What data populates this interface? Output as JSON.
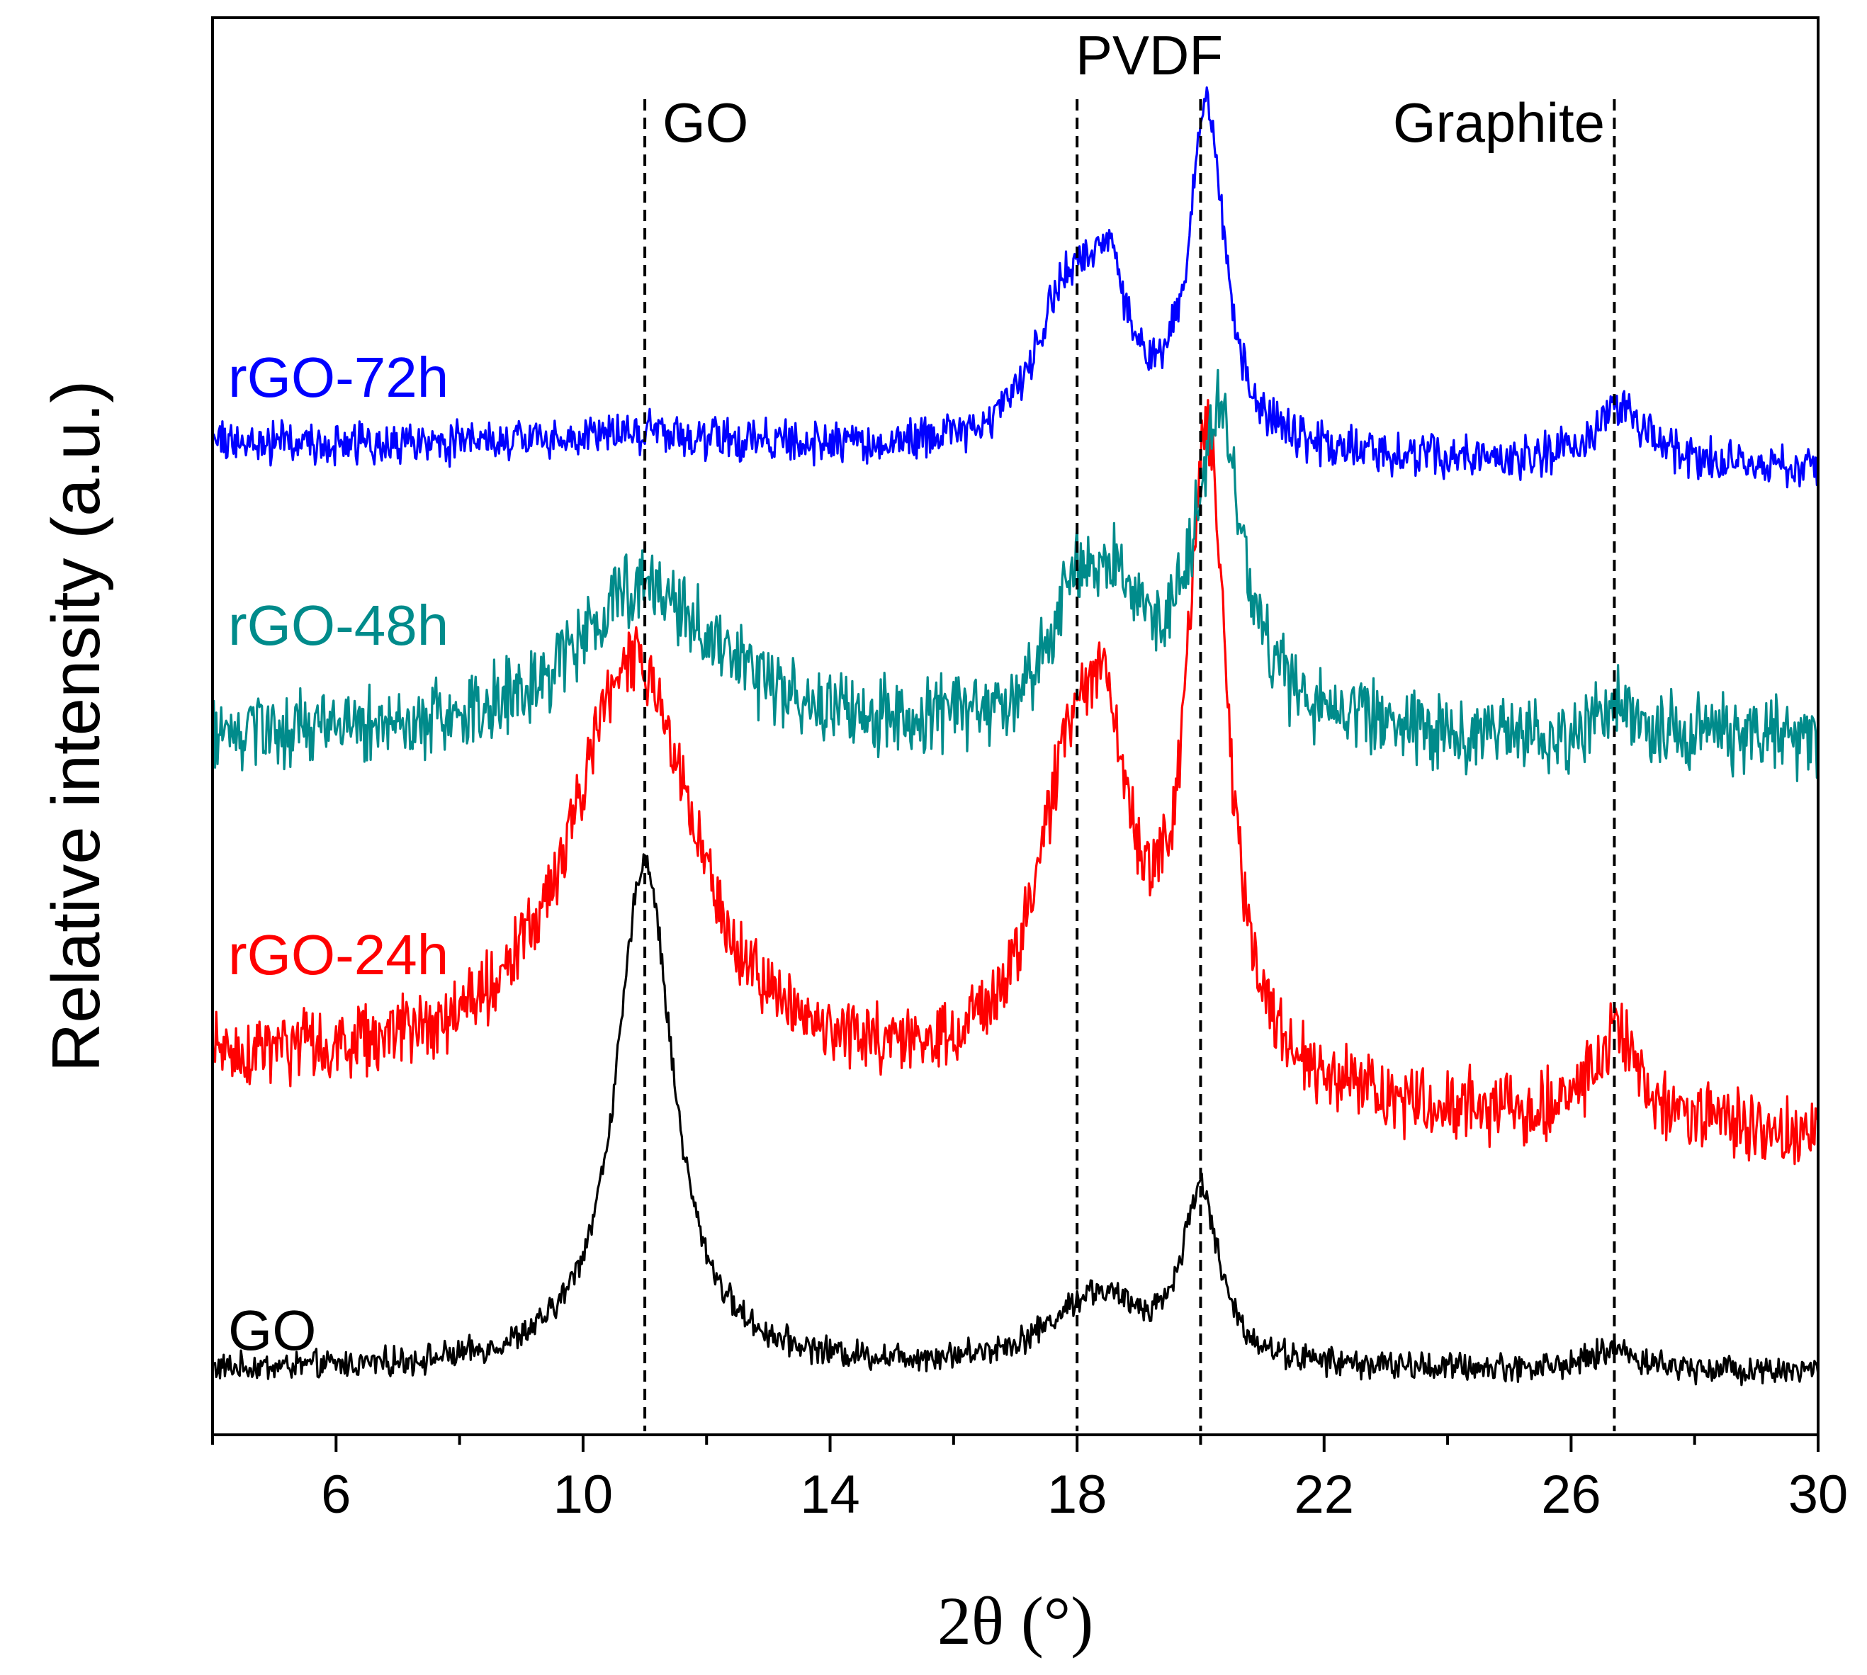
{
  "chart_data": {
    "type": "line",
    "title": "",
    "xlabel": "2θ (°)",
    "ylabel": "Relative intensity (a.u.)",
    "xlim": [
      4,
      30
    ],
    "ylim": [
      0,
      1
    ],
    "x_ticks": [
      "6",
      "10",
      "14",
      "18",
      "22",
      "26",
      "30"
    ],
    "y_ticks": [],
    "grid": false,
    "reference_lines": [
      {
        "x": 11.0,
        "label": "GO"
      },
      {
        "x": 18.0,
        "label": "PVDF"
      },
      {
        "x": 20.0,
        "label": ""
      },
      {
        "x": 26.7,
        "label": "Graphite"
      }
    ],
    "series": [
      {
        "name": "GO",
        "color": "#000000",
        "baseline": 0.045,
        "noise": 0.008,
        "slope": 0,
        "peaks": [
          {
            "center": 11.0,
            "height": 0.36,
            "width": 0.55
          },
          {
            "center": 18.3,
            "height": 0.05,
            "width": 0.9
          },
          {
            "center": 20.0,
            "height": 0.12,
            "width": 0.35
          },
          {
            "center": 26.7,
            "height": 0.015,
            "width": 0.4
          }
        ]
      },
      {
        "name": "rGO-24h",
        "color": "#ff0000",
        "baseline": 0.26,
        "noise": 0.02,
        "slope": -0.002,
        "peaks": [
          {
            "center": 10.8,
            "height": 0.3,
            "width": 1.2
          },
          {
            "center": 17.9,
            "height": 0.2,
            "width": 0.7
          },
          {
            "center": 18.5,
            "height": 0.15,
            "width": 0.45
          },
          {
            "center": 20.1,
            "height": 0.45,
            "width": 0.4
          },
          {
            "center": 26.7,
            "height": 0.06,
            "width": 0.5
          }
        ]
      },
      {
        "name": "rGO-48h",
        "color": "#008b8b",
        "baseline": 0.49,
        "noise": 0.022,
        "slope": 0,
        "peaks": [
          {
            "center": 11.0,
            "height": 0.11,
            "width": 1.4
          },
          {
            "center": 18.0,
            "height": 0.09,
            "width": 0.5
          },
          {
            "center": 18.7,
            "height": 0.08,
            "width": 0.4
          },
          {
            "center": 20.3,
            "height": 0.22,
            "width": 0.5
          },
          {
            "center": 26.8,
            "height": 0.02,
            "width": 0.5
          }
        ]
      },
      {
        "name": "rGO-72h",
        "color": "#0000ff",
        "baseline": 0.7,
        "noise": 0.012,
        "slope": -0.0007,
        "peaks": [
          {
            "center": 10.8,
            "height": 0.012,
            "width": 1.5
          },
          {
            "center": 17.8,
            "height": 0.1,
            "width": 0.6
          },
          {
            "center": 18.5,
            "height": 0.1,
            "width": 0.4
          },
          {
            "center": 20.1,
            "height": 0.24,
            "width": 0.35
          },
          {
            "center": 26.8,
            "height": 0.04,
            "width": 0.5
          }
        ]
      }
    ]
  }
}
